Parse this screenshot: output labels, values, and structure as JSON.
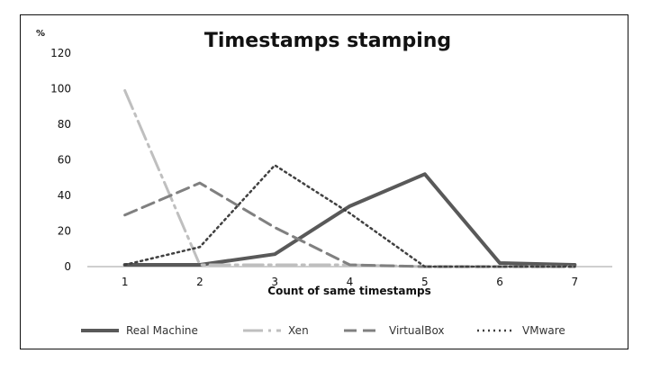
{
  "chart_data": {
    "type": "line",
    "title": "Timestamps stamping",
    "unit_label": "%",
    "xlabel": "Count of same timestamps",
    "ylabel": "",
    "x": [
      1,
      2,
      3,
      4,
      5,
      6,
      7
    ],
    "ylim": [
      0,
      120
    ],
    "yticks": [
      0,
      20,
      40,
      60,
      80,
      100,
      120
    ],
    "grid": false,
    "legend_position": "bottom",
    "series": [
      {
        "name": "Real Machine",
        "values": [
          1,
          1,
          7,
          34,
          52,
          2,
          1
        ],
        "color": "#595959",
        "dash": "solid"
      },
      {
        "name": "Xen",
        "values": [
          99,
          1,
          1,
          1,
          0,
          0,
          0
        ],
        "color": "#bfbfbf",
        "dash": "dashdot"
      },
      {
        "name": "VirtualBox",
        "values": [
          29,
          47,
          22,
          1,
          0,
          0,
          0
        ],
        "color": "#808080",
        "dash": "dashed"
      },
      {
        "name": "VMware",
        "values": [
          1,
          11,
          57,
          30,
          0,
          0,
          0
        ],
        "color": "#404040",
        "dash": "dotted"
      }
    ]
  }
}
